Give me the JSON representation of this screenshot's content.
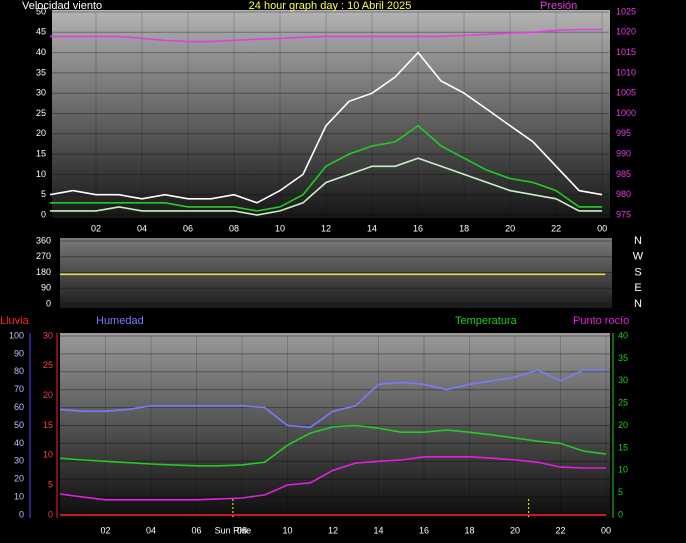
{
  "chart_data": [
    {
      "type": "line",
      "title": "24 hour graph day : 10 Abril 2025",
      "ylabel": "Velocidad viento",
      "y2label": "Presión",
      "x": [
        0,
        1,
        2,
        3,
        4,
        5,
        6,
        7,
        8,
        9,
        10,
        11,
        12,
        13,
        14,
        15,
        16,
        17,
        18,
        19,
        20,
        21,
        22,
        23,
        24
      ],
      "xlim": [
        0,
        24.3
      ],
      "xticks": [
        {
          "value": 2,
          "label": "02"
        },
        {
          "value": 4,
          "label": "04"
        },
        {
          "value": 6,
          "label": "06"
        },
        {
          "value": 8,
          "label": "08"
        },
        10,
        12,
        14,
        16,
        18,
        20,
        22,
        {
          "value": 24,
          "label": "00"
        }
      ],
      "ylim": [
        0,
        50
      ],
      "yticks": [
        0,
        5,
        10,
        15,
        20,
        25,
        30,
        35,
        40,
        45,
        50
      ],
      "y2lim": [
        975,
        1025
      ],
      "y2ticks": [
        975,
        980,
        985,
        990,
        995,
        1000,
        1005,
        1010,
        1015,
        1020,
        1025
      ],
      "series": [
        {
          "color": "#ffffff",
          "values": [
            5,
            6,
            5,
            5,
            4,
            5,
            4,
            4,
            5,
            3,
            6,
            10,
            22,
            28,
            30,
            34,
            40,
            33,
            30,
            26,
            22,
            18,
            12,
            6,
            5
          ]
        },
        {
          "color": "#c8f0c8",
          "values": [
            1,
            1,
            1,
            2,
            1,
            1,
            1,
            1,
            1,
            0,
            1,
            3,
            8,
            10,
            12,
            12,
            14,
            12,
            10,
            8,
            6,
            5,
            4,
            1,
            1
          ]
        },
        {
          "color": "#22cc22",
          "values": [
            3,
            3,
            3,
            3,
            3,
            3,
            2,
            2,
            2,
            1,
            2,
            5,
            12,
            15,
            17,
            18,
            22,
            17,
            14,
            11,
            9,
            8,
            6,
            2,
            2
          ]
        },
        {
          "color": "#e040e0",
          "axis": "y2",
          "values": [
            1019,
            1019,
            1019,
            1019,
            1018.5,
            1018,
            1017.7,
            1017.7,
            1018,
            1018.3,
            1018.5,
            1018.8,
            1019,
            1019,
            1019,
            1019,
            1019,
            1019,
            1019.2,
            1019.5,
            1019.8,
            1020,
            1020.5,
            1020.7,
            1020.7
          ]
        }
      ]
    },
    {
      "type": "line",
      "x": [
        0,
        24
      ],
      "xlim": [
        0,
        24.3
      ],
      "ylim": [
        0,
        360
      ],
      "yticks": [
        0,
        90,
        180,
        270,
        360
      ],
      "y2lim": [
        0,
        360
      ],
      "y2ticks": [
        {
          "value": 0,
          "label": "N"
        },
        {
          "value": 90,
          "label": "E"
        },
        {
          "value": 180,
          "label": "S"
        },
        {
          "value": 270,
          "label": "W"
        },
        {
          "value": 360,
          "label": "N"
        }
      ],
      "series": [
        {
          "color": "#e0e040",
          "values": [
            170,
            170
          ]
        }
      ]
    },
    {
      "type": "line",
      "annotation": "Sun Rise",
      "sun_markers": [
        7.6,
        20.6
      ],
      "x": [
        0,
        1,
        2,
        3,
        4,
        5,
        6,
        7,
        8,
        9,
        10,
        11,
        12,
        13,
        14,
        15,
        16,
        17,
        18,
        19,
        20,
        21,
        22,
        23,
        24
      ],
      "xlim": [
        0,
        24.2
      ],
      "xticks": [
        {
          "value": 2,
          "label": "02"
        },
        {
          "value": 4,
          "label": "04"
        },
        {
          "value": 6,
          "label": "06"
        },
        {
          "value": 8,
          "label": "08"
        },
        10,
        12,
        14,
        16,
        18,
        20,
        22,
        {
          "value": 24,
          "label": "00"
        }
      ],
      "ylim": [
        0,
        100
      ],
      "yticks": [
        0,
        10,
        20,
        30,
        40,
        50,
        60,
        70,
        80,
        90,
        100
      ],
      "y3lim": [
        0,
        30
      ],
      "y3ticks": [
        0,
        5,
        10,
        15,
        20,
        25,
        30
      ],
      "y2lim": [
        0,
        40
      ],
      "y2ticks": [
        0,
        5,
        10,
        15,
        20,
        25,
        30,
        35,
        40
      ],
      "series": [
        {
          "name": "Lluvia",
          "color": "#ff2020",
          "axis": "y3",
          "values": [
            0,
            0,
            0,
            0,
            0,
            0,
            0,
            0,
            0,
            0,
            0,
            0,
            0,
            0,
            0,
            0,
            0,
            0,
            0,
            0,
            0,
            0,
            0,
            0,
            0
          ]
        },
        {
          "name": "Humedad",
          "color": "#7a7aff",
          "values": [
            59,
            58,
            58,
            59,
            61,
            61,
            61,
            61,
            61,
            60,
            50,
            49,
            58,
            61,
            73,
            74,
            73,
            70,
            73,
            75,
            77,
            81,
            75,
            81,
            81
          ]
        },
        {
          "name": "Temperatura",
          "color": "#22cc22",
          "axis": "y2",
          "values": [
            12.7,
            12.3,
            12,
            11.7,
            11.4,
            11.2,
            11,
            11,
            11.2,
            11.8,
            15.6,
            18.3,
            19.7,
            20,
            19.4,
            18.5,
            18.5,
            19,
            18.5,
            17.9,
            17.2,
            16.5,
            16,
            14.3,
            13.6
          ]
        },
        {
          "name": "Punto rocío",
          "color": "#e020e0",
          "axis": "y2",
          "values": [
            4.7,
            4,
            3.4,
            3.4,
            3.4,
            3.4,
            3.4,
            3.6,
            3.8,
            4.5,
            6.7,
            7.2,
            10,
            11.6,
            12,
            12.3,
            13,
            13,
            13,
            12.7,
            12.3,
            11.8,
            10.7,
            10.5,
            10.5
          ]
        }
      ]
    }
  ]
}
